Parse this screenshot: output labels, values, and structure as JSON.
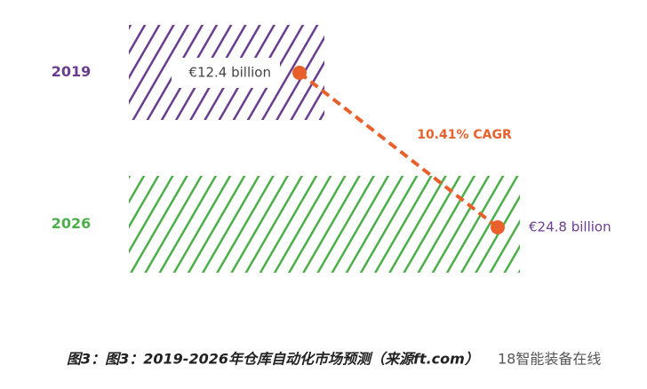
{
  "chart_data": {
    "type": "bar",
    "orientation": "horizontal",
    "categories": [
      "2019",
      "2026"
    ],
    "values": [
      12.4,
      24.8
    ],
    "value_labels": [
      "€12.4 billion",
      "€24.8 billion"
    ],
    "colors": [
      "#6a3d8f",
      "#4daf4a"
    ],
    "label_color": "#6a3d8f",
    "line_color": "#e8602c",
    "annotation": "10.41% CAGR"
  },
  "caption": "图3：图3：2019-2026年仓库自动化市场预测（来源ft.com）",
  "watermark": "18智能装备在线"
}
